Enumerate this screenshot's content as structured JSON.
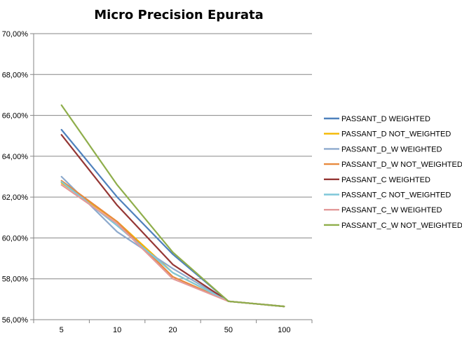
{
  "chart_data": {
    "type": "line",
    "title": "Micro Precision   Epurata",
    "categories": [
      "5",
      "10",
      "20",
      "50",
      "100"
    ],
    "ylim": [
      56,
      70
    ],
    "y_ticks": [
      "56,00%",
      "58,00%",
      "60,00%",
      "62,00%",
      "64,00%",
      "66,00%",
      "68,00%",
      "70,00%"
    ],
    "y_tick_values": [
      56,
      58,
      60,
      62,
      64,
      66,
      68,
      70
    ],
    "grid": true,
    "legend_position": "right",
    "series": [
      {
        "name": "PASSANT_D WEIGHTED",
        "color": "#4f81bd",
        "values": [
          65.3,
          62.0,
          59.2,
          56.9,
          56.65
        ]
      },
      {
        "name": "PASSANT_D NOT_WEIGHTED",
        "color": "#f5b800",
        "values": [
          62.7,
          60.8,
          58.3,
          56.9,
          56.65
        ]
      },
      {
        "name": "PASSANT_D_W WEIGHTED",
        "color": "#8eaacd",
        "values": [
          63.0,
          60.3,
          58.5,
          56.9,
          56.65
        ]
      },
      {
        "name": "PASSANT_D_W NOT_WEIGHTED",
        "color": "#e88a3e",
        "values": [
          62.8,
          60.8,
          58.1,
          56.9,
          56.65
        ]
      },
      {
        "name": "PASSANT_C WEIGHTED",
        "color": "#953735",
        "values": [
          65.05,
          61.6,
          58.7,
          56.9,
          56.65
        ]
      },
      {
        "name": "PASSANT_C NOT_WEIGHTED",
        "color": "#7fc7d9",
        "values": [
          62.75,
          60.6,
          58.3,
          56.9,
          56.65
        ]
      },
      {
        "name": "PASSANT_C_W WEIGHTED",
        "color": "#e39a9a",
        "values": [
          62.6,
          60.7,
          58.0,
          56.9,
          56.65
        ]
      },
      {
        "name": "PASSANT_C_W NOT_WEIGHTED",
        "color": "#8fae4b",
        "values": [
          66.5,
          62.6,
          59.3,
          56.9,
          56.65
        ]
      }
    ]
  }
}
